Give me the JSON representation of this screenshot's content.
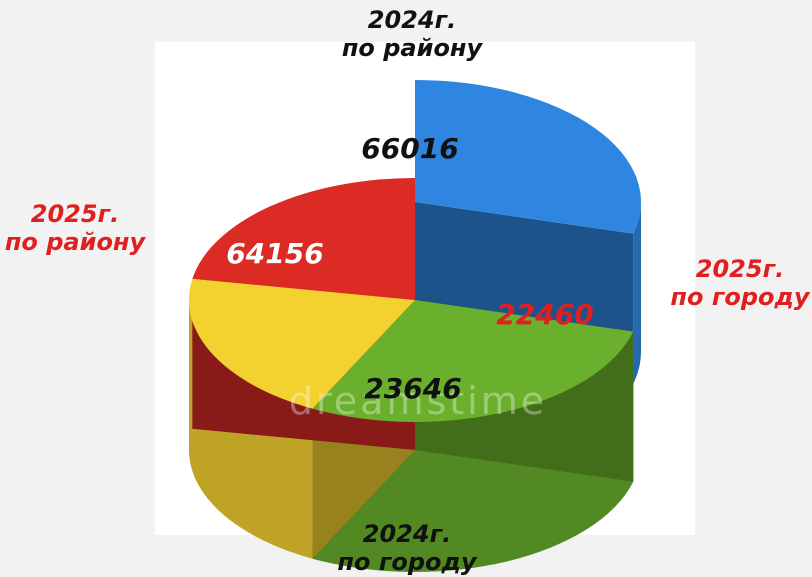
{
  "chart_data": {
    "type": "pie",
    "categories": [
      "2024г. по району",
      "2025г. по городу",
      "2024г. по городу",
      "2025г. по району"
    ],
    "values": [
      66016,
      22460,
      23646,
      64156
    ],
    "slices": [
      {
        "line1": "2024г.",
        "line2": "по району",
        "value": 66016,
        "value_label": "66016",
        "color": "#2f86e0",
        "label_color": "#111111",
        "value_color": "#111111"
      },
      {
        "line1": "2025г.",
        "line2": "по городу",
        "value": 22460,
        "value_label": "22460",
        "color": "#6ab02c",
        "label_color": "#e02020",
        "value_color": "#e02020"
      },
      {
        "line1": "2024г.",
        "line2": "по городу",
        "value": 23646,
        "value_label": "23646",
        "color": "#f3d12e",
        "label_color": "#111111",
        "value_color": "#111111"
      },
      {
        "line1": "2025г.",
        "line2": "по району",
        "value": 64156,
        "value_label": "64156",
        "color": "#dc2a25",
        "label_color": "#e02020",
        "value_color": "#ffffff"
      }
    ]
  },
  "watermark": "dreamstime"
}
